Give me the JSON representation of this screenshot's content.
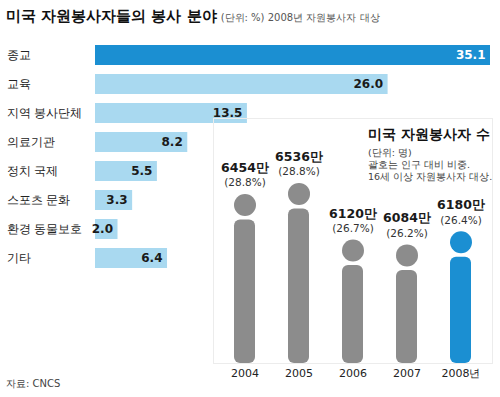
{
  "chart_data": [
    {
      "type": "bar",
      "title": "미국 자원봉사자들의 봉사 분야",
      "subtitle": "(단위: %) 2008년 자원봉사자 대상",
      "orientation": "horizontal",
      "categories": [
        "종교",
        "교육",
        "지역 봉사단체",
        "의료기관",
        "정치 국제",
        "스포츠 문화",
        "환경 동물보호",
        "기타"
      ],
      "values": [
        35.1,
        26.0,
        13.5,
        8.2,
        5.5,
        3.3,
        2.0,
        6.4
      ],
      "value_labels": [
        "35.1",
        "26.0",
        "13.5",
        "8.2",
        "5.5",
        "3.3",
        "2.0",
        "6.4"
      ],
      "colors": [
        "#1b8fd2",
        "#a9d9f0",
        "#a9d9f0",
        "#a9d9f0",
        "#a9d9f0",
        "#a9d9f0",
        "#a9d9f0",
        "#a9d9f0"
      ],
      "xlim": [
        0,
        35.1
      ],
      "xticks": [],
      "data_labels": true,
      "tick_labels": "y",
      "grid": false
    },
    {
      "type": "bar",
      "title": "미국 자원봉사자 수",
      "subtitle": "(단위: 명)",
      "notes": [
        "괄호는 인구 대비 비중.",
        "16세 이상 자원봉사자 대상."
      ],
      "categories": [
        "2004",
        "2005",
        "2006",
        "2007",
        "2008년"
      ],
      "values": [
        64540000,
        65360000,
        61200000,
        60840000,
        61800000
      ],
      "value_labels": [
        "6454만",
        "6536만",
        "6120만",
        "6084만",
        "6180만"
      ],
      "shares": [
        28.8,
        28.8,
        26.7,
        26.2,
        26.4
      ],
      "share_labels": [
        "(28.8%)",
        "(28.8%)",
        "(26.7%)",
        "(26.2%)",
        "(26.4%)"
      ],
      "colors": [
        "#8c8c8c",
        "#8c8c8c",
        "#8c8c8c",
        "#8c8c8c",
        "#1b8fd2"
      ],
      "ylim": [
        54000000,
        72000000
      ],
      "yticks": [],
      "data_labels": true,
      "tick_labels": "x",
      "grid": false
    }
  ],
  "source": "자료: CNCS"
}
